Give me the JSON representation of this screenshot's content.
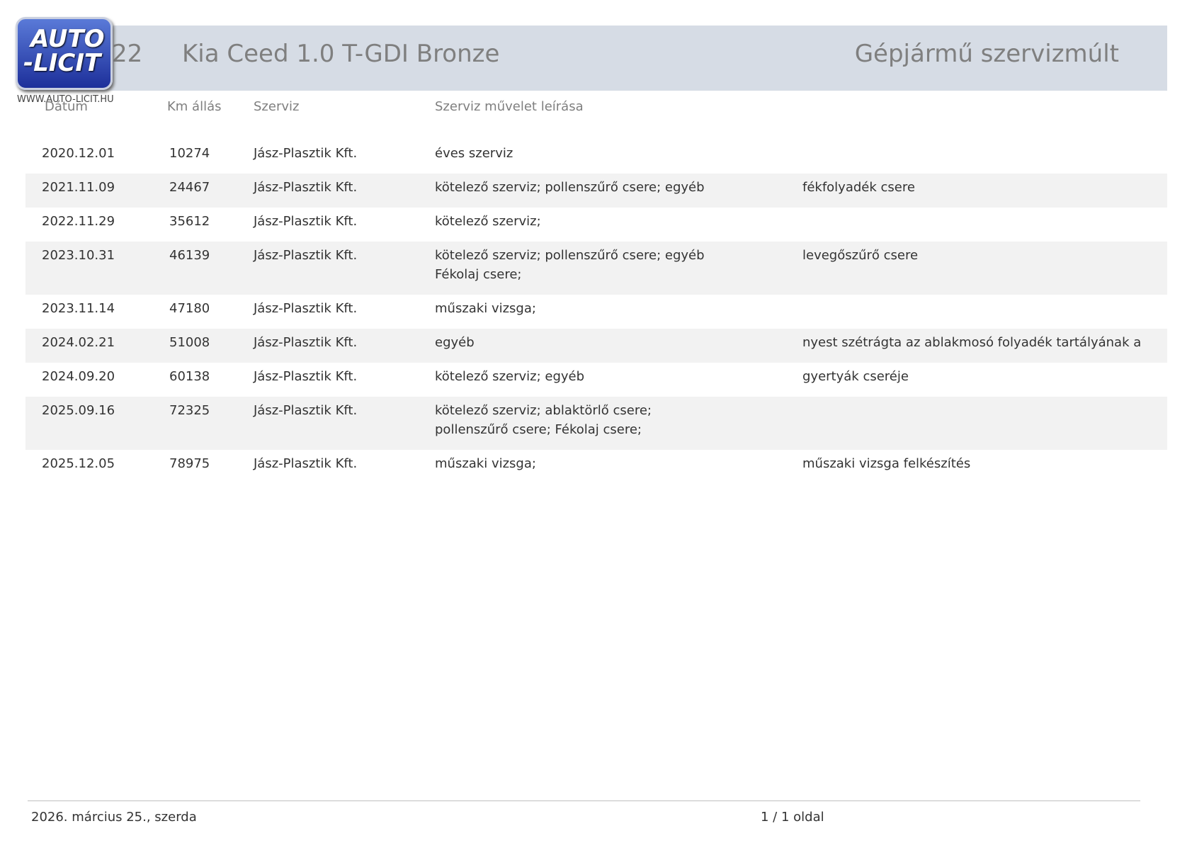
{
  "logo": {
    "line1": "AUTO",
    "line2": "-LICIT",
    "url": "WWW.AUTO-LICIT.HU"
  },
  "header": {
    "number": "22",
    "vehicle": "Kia Ceed 1.0 T-GDI Bronze",
    "title": "Gépjármű szervizmúlt"
  },
  "table": {
    "columns": [
      "Dátum",
      "Km állás",
      "Szerviz",
      "Szerviz művelet leírása"
    ],
    "rows": [
      {
        "date": "2020.12.01",
        "km": 10274,
        "service": "Jász-Plasztik Kft.",
        "description": [
          "éves szerviz"
        ],
        "note": null
      },
      {
        "date": "2021.11.09",
        "km": 24467,
        "service": "Jász-Plasztik Kft.",
        "description": [
          "kötelező szerviz; pollenszűrő csere; egyéb"
        ],
        "note": "fékfolyadék csere"
      },
      {
        "date": "2022.11.29",
        "km": 35612,
        "service": "Jász-Plasztik Kft.",
        "description": [
          "kötelező szerviz;"
        ],
        "note": null
      },
      {
        "date": "2023.10.31",
        "km": 46139,
        "service": "Jász-Plasztik Kft.",
        "description": [
          "kötelező szerviz; pollenszűrő csere; egyéb",
          "Fékolaj csere;"
        ],
        "note": "levegőszűrő csere"
      },
      {
        "date": "2023.11.14",
        "km": 47180,
        "service": "Jász-Plasztik Kft.",
        "description": [
          "műszaki vizsga;"
        ],
        "note": null
      },
      {
        "date": "2024.02.21",
        "km": 51008,
        "service": "Jász-Plasztik Kft.",
        "description": [
          "egyéb"
        ],
        "note": "nyest szétrágta az ablakmosó folyadék tartályának a"
      },
      {
        "date": "2024.09.20",
        "km": 60138,
        "service": "Jász-Plasztik Kft.",
        "description": [
          "kötelező szerviz; egyéb"
        ],
        "note": "gyertyák cseréje"
      },
      {
        "date": "2025.09.16",
        "km": 72325,
        "service": "Jász-Plasztik Kft.",
        "description": [
          "kötelező szerviz; ablaktörlő csere;",
          "pollenszűrő csere; Fékolaj csere;"
        ],
        "note": null
      },
      {
        "date": "2025.12.05",
        "km": 78975,
        "service": "Jász-Plasztik Kft.",
        "description": [
          "műszaki vizsga;"
        ],
        "note": "műszaki vizsga felkészítés"
      }
    ]
  },
  "footer": {
    "date": "2026. március 25., szerda",
    "page": "1 / 1 oldal"
  }
}
